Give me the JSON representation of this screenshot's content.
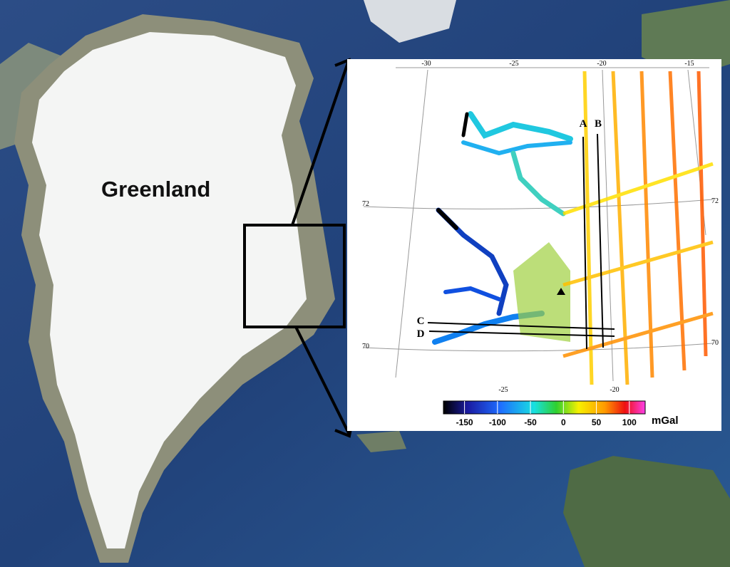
{
  "map": {
    "label": "Greenland"
  },
  "inset": {
    "top_lon_labels": [
      -30,
      -25,
      -20,
      -15
    ],
    "bottom_lon_labels": [
      -25,
      -20
    ],
    "left_lat_labels": [
      72,
      70
    ],
    "right_lat_labels": [
      72,
      70
    ],
    "profiles": [
      "A",
      "B",
      "C",
      "D"
    ],
    "colorbar": {
      "range": [
        -182,
        124
      ],
      "ticks": [
        -150,
        -100,
        -50,
        0,
        50,
        100
      ],
      "unit": "mGal"
    }
  }
}
